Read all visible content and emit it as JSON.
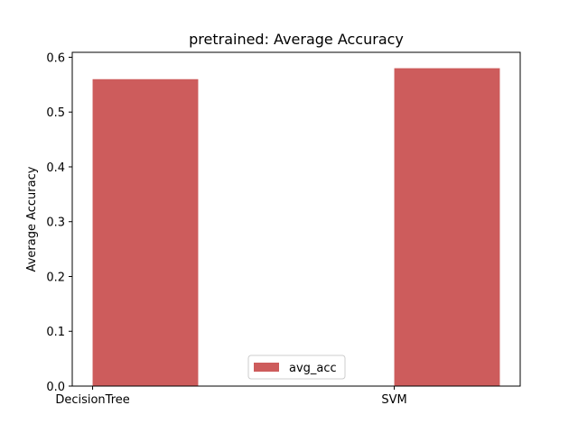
{
  "chart_data": {
    "type": "bar",
    "title": "pretrained: Average Accuracy",
    "xlabel": "",
    "ylabel": "Average Accuracy",
    "categories": [
      "DecisionTree",
      "SVM"
    ],
    "series": [
      {
        "name": "avg_acc",
        "values": [
          0.56,
          0.58
        ],
        "color": "#cd5c5c"
      }
    ],
    "ylim": [
      0,
      0.6
    ],
    "yticks": [
      0.0,
      0.1,
      0.2,
      0.3,
      0.4,
      0.5,
      0.6
    ],
    "ytick_labels": [
      "0.0",
      "0.1",
      "0.2",
      "0.3",
      "0.4",
      "0.5",
      "0.6"
    ],
    "grid": false,
    "legend": {
      "placement": "bottom-center"
    }
  }
}
